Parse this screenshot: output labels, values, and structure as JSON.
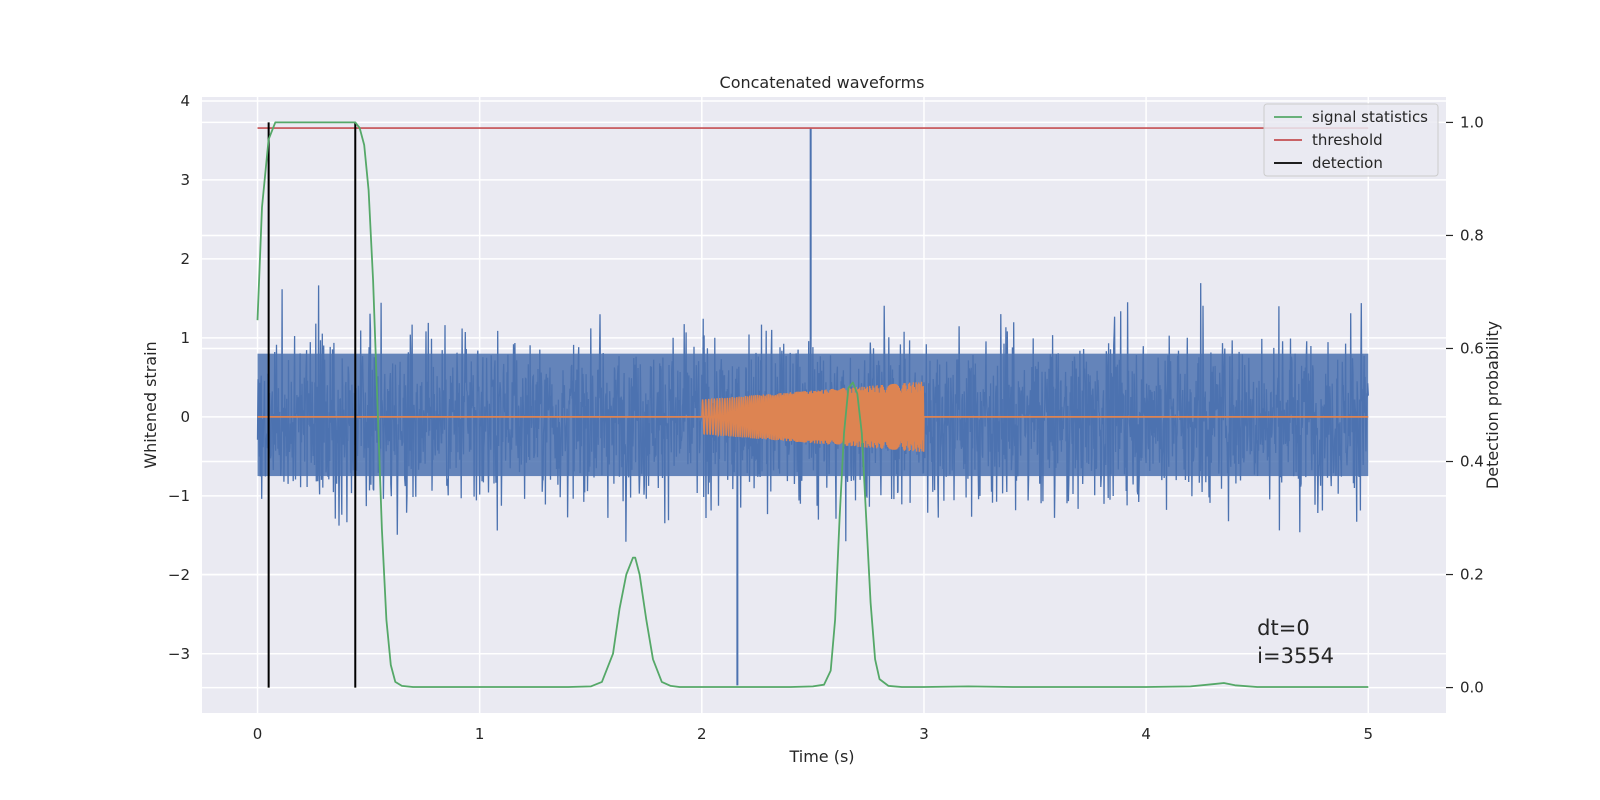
{
  "chart_data": {
    "type": "line",
    "title": "Concatenated waveforms",
    "xlabel": "Time (s)",
    "ylabel": "Whitened strain",
    "y2label": "Detection probability",
    "xlim": [
      -0.25,
      5.35
    ],
    "ylim": [
      -3.75,
      4.05
    ],
    "y2lim": [
      -0.045,
      1.045
    ],
    "x_ticks": [
      0,
      1,
      2,
      3,
      4,
      5
    ],
    "y_ticks": [
      -3,
      -2,
      -1,
      0,
      1,
      2,
      3,
      4
    ],
    "y2_ticks": [
      0.0,
      0.2,
      0.4,
      0.6,
      0.8,
      1.0
    ],
    "x_tick_labels": [
      "0",
      "1",
      "2",
      "3",
      "4",
      "5"
    ],
    "y_tick_labels": [
      "−3",
      "−2",
      "−1",
      "0",
      "1",
      "2",
      "3",
      "4"
    ],
    "y2_tick_labels": [
      "0.0",
      "0.2",
      "0.4",
      "0.6",
      "0.8",
      "1.0"
    ],
    "grid": true,
    "legend_position": "top-right",
    "annotations": [
      "dt=0",
      "i=3554"
    ],
    "annotation_position": [
      4.5,
      -2.6
    ],
    "series": [
      {
        "name": "",
        "axis": "left",
        "color": "#4c72b0",
        "kind": "whitened noise strain",
        "x_range": [
          0,
          5
        ],
        "typical_band": [
          -0.75,
          0.8
        ],
        "peak_max": 3.65,
        "peak_min": -3.4
      },
      {
        "name": "",
        "axis": "left",
        "color": "#dd8452",
        "kind": "injected chirp",
        "x_range": [
          0,
          5
        ],
        "chirp_start": 2.0,
        "chirp_end": 3.0,
        "amplitude_start": 0.22,
        "amplitude_end": 0.45
      },
      {
        "name": "signal statistics",
        "axis": "right",
        "color": "#55a868",
        "x": [
          0,
          0.02,
          0.05,
          0.08,
          0.1,
          0.15,
          0.2,
          0.3,
          0.4,
          0.44,
          0.46,
          0.48,
          0.5,
          0.52,
          0.54,
          0.56,
          0.58,
          0.6,
          0.62,
          0.65,
          0.7,
          0.8,
          1.0,
          1.2,
          1.4,
          1.5,
          1.55,
          1.6,
          1.63,
          1.66,
          1.69,
          1.7,
          1.72,
          1.75,
          1.78,
          1.82,
          1.86,
          1.9,
          2.0,
          2.2,
          2.4,
          2.5,
          2.55,
          2.58,
          2.6,
          2.62,
          2.64,
          2.66,
          2.68,
          2.7,
          2.72,
          2.74,
          2.76,
          2.78,
          2.8,
          2.84,
          2.9,
          3.0,
          3.2,
          3.4,
          3.6,
          3.8,
          4.0,
          4.2,
          4.3,
          4.35,
          4.4,
          4.5,
          4.7,
          5.0
        ],
        "y": [
          0.65,
          0.85,
          0.97,
          1.0,
          1.0,
          1.0,
          1.0,
          1.0,
          1.0,
          1.0,
          0.99,
          0.96,
          0.88,
          0.72,
          0.5,
          0.28,
          0.12,
          0.04,
          0.01,
          0.003,
          0.001,
          0.001,
          0.001,
          0.001,
          0.001,
          0.002,
          0.01,
          0.06,
          0.14,
          0.2,
          0.23,
          0.23,
          0.2,
          0.12,
          0.05,
          0.01,
          0.003,
          0.001,
          0.001,
          0.001,
          0.001,
          0.002,
          0.005,
          0.03,
          0.12,
          0.3,
          0.45,
          0.53,
          0.54,
          0.52,
          0.45,
          0.3,
          0.15,
          0.05,
          0.015,
          0.003,
          0.001,
          0.001,
          0.002,
          0.001,
          0.001,
          0.001,
          0.001,
          0.002,
          0.006,
          0.008,
          0.004,
          0.001,
          0.001,
          0.001
        ]
      },
      {
        "name": "threshold",
        "axis": "right",
        "color": "#c44e52",
        "x": [
          0,
          5
        ],
        "y": [
          0.99,
          0.99
        ]
      },
      {
        "name": "detection",
        "axis": "right",
        "color": "#000000",
        "kind": "vertical lines",
        "x": [
          0.05,
          0.44
        ],
        "y_range": [
          0.0,
          1.0
        ]
      }
    ]
  }
}
